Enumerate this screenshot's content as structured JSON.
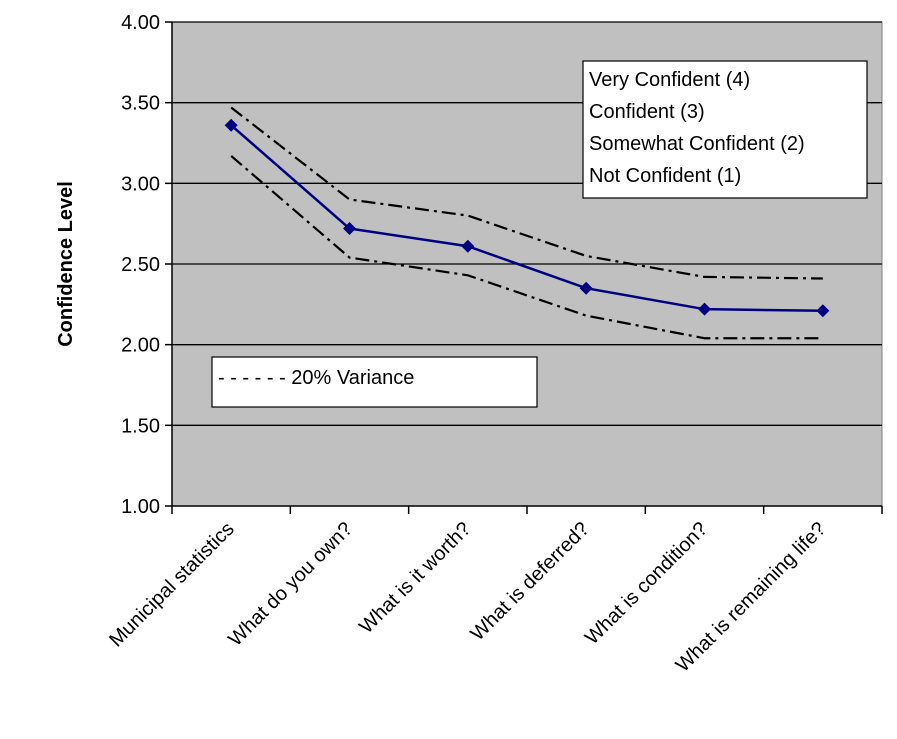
{
  "chart_data": {
    "type": "line",
    "title": "",
    "xlabel": "",
    "ylabel": "Confidence Level",
    "ylim": [
      1.0,
      4.0
    ],
    "ytick_labels": [
      "1.00",
      "1.50",
      "2.00",
      "2.50",
      "3.00",
      "3.50",
      "4.00"
    ],
    "yticks": [
      1.0,
      1.5,
      2.0,
      2.5,
      3.0,
      3.5,
      4.0
    ],
    "categories": [
      "Municipal statistics",
      "What do you own?",
      "What is it worth?",
      "What is deferred?",
      "What is condition?",
      "What is remaining life?"
    ],
    "series": [
      {
        "values": [
          3.36,
          2.72,
          2.61,
          2.35,
          2.22,
          2.21
        ]
      },
      {
        "values": [
          3.47,
          2.9,
          2.8,
          2.55,
          2.42,
          2.41
        ]
      },
      {
        "values": [
          3.17,
          2.54,
          2.43,
          2.18,
          2.04,
          2.04
        ]
      }
    ],
    "grid": "horizontal",
    "plot_background": "#c0c0c0",
    "line_color": "#000080",
    "legend_scale": [
      "Very Confident (4)",
      "Confident (3)",
      "Somewhat Confident (2)",
      "Not Confident (1)"
    ],
    "legend_scale_placement": "top-right",
    "variance_legend": "- - - - - - 20% Variance",
    "variance_legend_placement": "lower-left"
  }
}
